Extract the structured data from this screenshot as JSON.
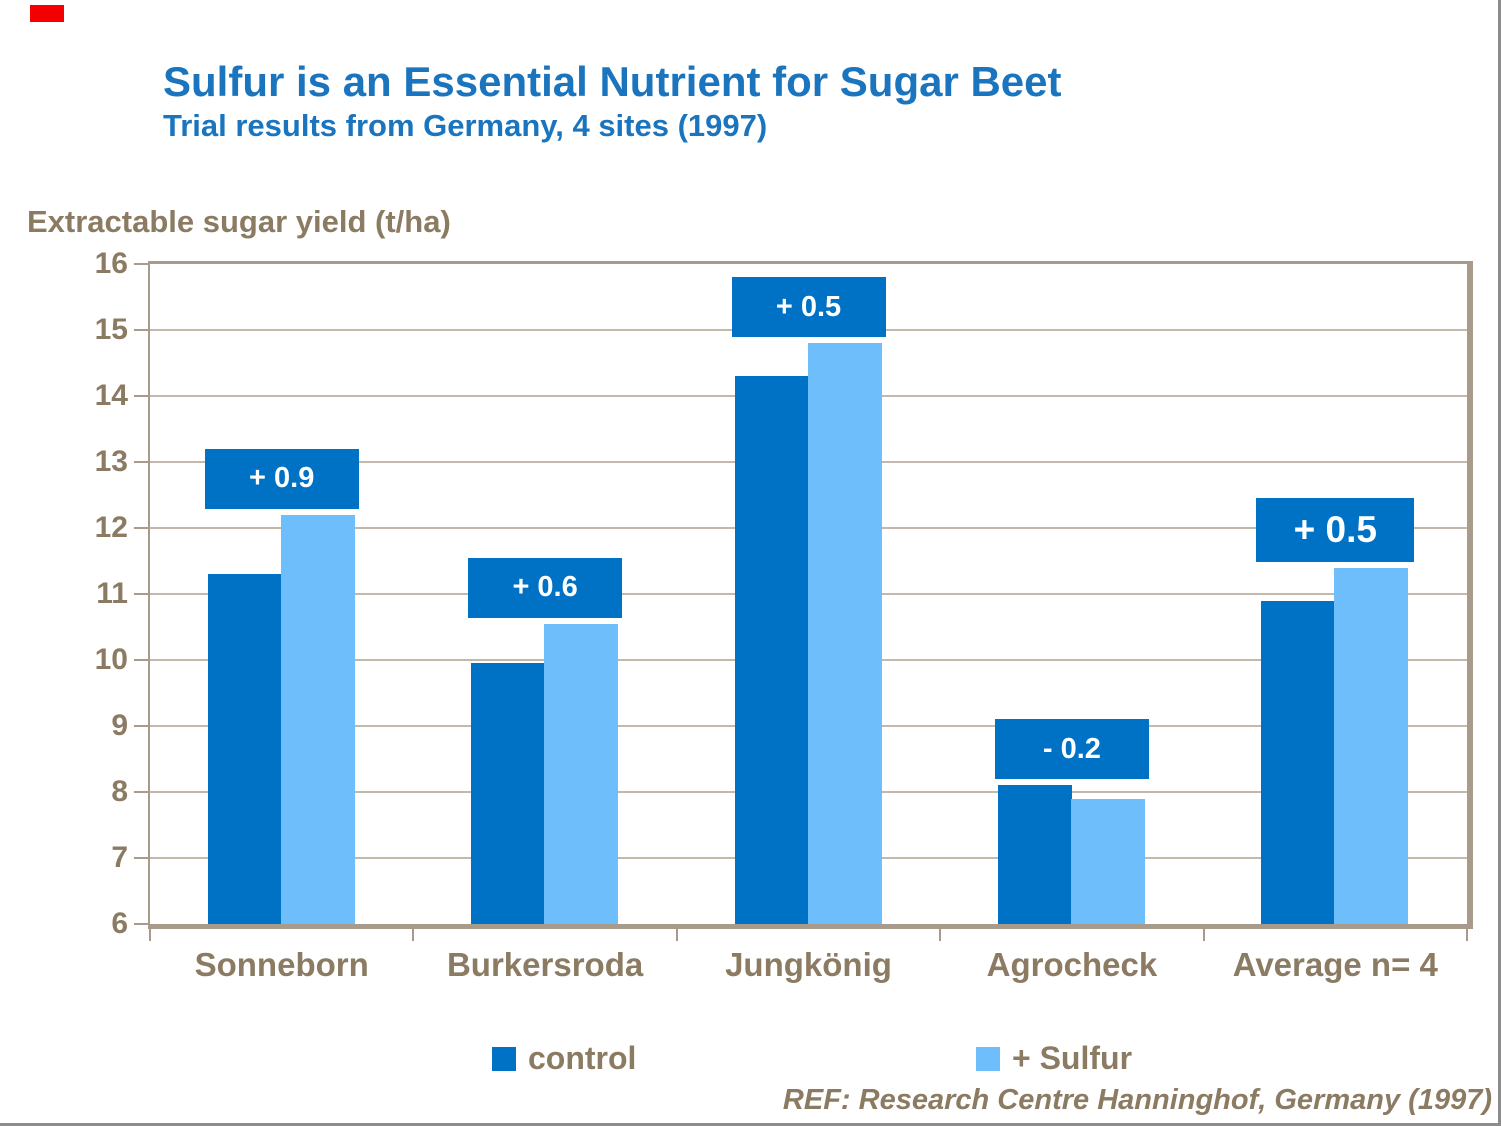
{
  "header": {
    "title": "Sulfur is an Essential Nutrient for Sugar Beet",
    "subtitle": "Trial results from Germany, 4 sites (1997)"
  },
  "axis": {
    "unit_label": "Extractable sugar yield (t/ha)"
  },
  "legend": {
    "items": [
      {
        "label": "control",
        "color": "#0072C6"
      },
      {
        "label": "+ Sulfur",
        "color": "#6DBEFB"
      }
    ]
  },
  "footer": {
    "reference": "REF: Research Centre Hanninghof, Germany (1997)"
  },
  "chart_data": {
    "type": "bar",
    "title": "Sulfur is an Essential Nutrient for Sugar Beet",
    "subtitle": "Trial results from Germany, 4 sites (1997)",
    "ylabel": "Extractable sugar yield (t/ha)",
    "xlabel": "",
    "ylim": [
      6,
      16
    ],
    "ytick_step": 1,
    "grid": true,
    "legend_position": "bottom",
    "categories": [
      "Sonneborn",
      "Burkersroda",
      "Jungkönig",
      "Agrocheck",
      "Average n= 4"
    ],
    "series": [
      {
        "name": "control",
        "color": "#0072C6",
        "values": [
          11.3,
          9.95,
          14.3,
          8.1,
          10.9
        ]
      },
      {
        "name": "+ Sulfur",
        "color": "#6DBEFB",
        "values": [
          12.2,
          10.55,
          14.8,
          7.9,
          11.4
        ]
      }
    ],
    "annotations": [
      {
        "category": "Sonneborn",
        "text": "+ 0.9",
        "large": false
      },
      {
        "category": "Burkersroda",
        "text": "+ 0.6",
        "large": false
      },
      {
        "category": "Jungkönig",
        "text": "+ 0.5",
        "large": false
      },
      {
        "category": "Agrocheck",
        "text": "- 0.2",
        "large": false
      },
      {
        "category": "Average n= 4",
        "text": "+ 0.5",
        "large": true
      }
    ],
    "annotation_bg": "#0072C6",
    "annotation_text_color": "#FFFFFF"
  },
  "colors": {
    "title_text": "#1B75BE",
    "axis_text": "#8C7B63",
    "plot_border": "#A89B8C",
    "gridline": "#C3B9AB",
    "slide_edge": "#8C8C8C",
    "red_mark": "#F40000"
  }
}
